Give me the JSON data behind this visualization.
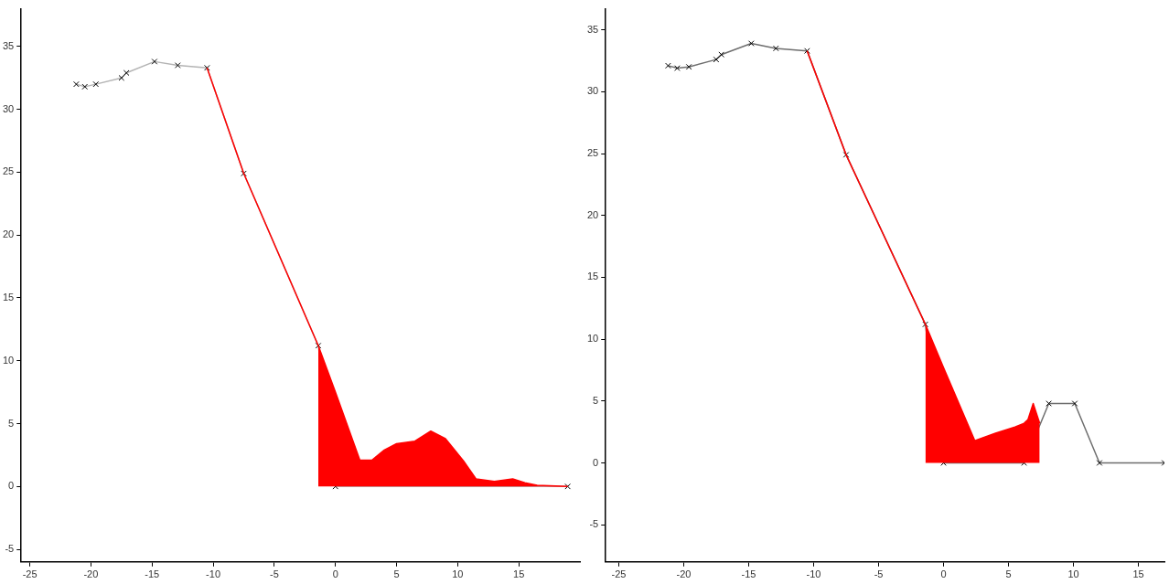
{
  "chart_data": [
    {
      "type": "line",
      "xlim": [
        -25.7,
        20
      ],
      "ylim": [
        -6,
        38
      ],
      "xticks": [
        -25,
        -20,
        -15,
        -10,
        -5,
        0,
        5,
        10,
        15
      ],
      "yticks": [
        -5,
        0,
        5,
        10,
        15,
        20,
        25,
        30,
        35
      ],
      "grid": false,
      "series": [
        {
          "type": "line",
          "color": "#b4b4b4",
          "marker": "cross",
          "x": [
            -21.2,
            -20.5,
            -19.6,
            -17.5,
            -17.1,
            -14.8,
            -12.9,
            -10.5,
            -7.5,
            -1.4,
            0,
            19
          ],
          "values": [
            32,
            31.8,
            32,
            32.5,
            32.9,
            33.8,
            33.5,
            33.3,
            24.9,
            11.2,
            0,
            0
          ]
        },
        {
          "type": "area",
          "color": "#ff0000",
          "marker": "none",
          "x": [
            -1.4,
            0,
            2,
            3,
            4,
            5,
            6.5,
            7.8,
            9,
            10.5,
            11.5,
            13,
            14.5,
            15.5,
            16.5,
            19
          ],
          "values": [
            11.2,
            7.5,
            2.1,
            2.1,
            2.9,
            3.4,
            3.6,
            4.4,
            3.8,
            2,
            0.6,
            0.4,
            0.6,
            0.3,
            0.1,
            0
          ]
        },
        {
          "type": "line",
          "color": "#ff0000",
          "marker": "none",
          "x": [
            -10.5,
            -7.5,
            -1.4
          ],
          "values": [
            33.3,
            24.9,
            11.2
          ]
        }
      ]
    },
    {
      "type": "line",
      "xlim": [
        -26,
        17
      ],
      "ylim": [
        -8,
        36.7
      ],
      "xticks": [
        -25,
        -20,
        -15,
        -10,
        -5,
        0,
        5,
        10,
        15
      ],
      "yticks": [
        -5,
        0,
        5,
        10,
        15,
        20,
        25,
        30,
        35
      ],
      "grid": false,
      "series": [
        {
          "type": "line",
          "color": "#6e6e6e",
          "marker": "cross",
          "x": [
            -21.2,
            -20.5,
            -19.6,
            -17.5,
            -17.1,
            -14.8,
            -12.9,
            -10.5,
            -7.5,
            -1.4,
            0,
            6.2,
            8.1,
            10.1,
            12,
            17
          ],
          "values": [
            32.1,
            31.9,
            32,
            32.6,
            33,
            33.9,
            33.5,
            33.3,
            24.9,
            11.2,
            0,
            0,
            4.8,
            4.8,
            0,
            0
          ]
        },
        {
          "type": "area",
          "color": "#ff0000",
          "marker": "none",
          "x": [
            -1.4,
            0,
            2.4,
            4,
            5.5,
            6.2,
            6.5,
            6.9,
            7.4
          ],
          "values": [
            11.2,
            7.7,
            1.8,
            2.4,
            2.9,
            3.2,
            3.5,
            4.8,
            3.2
          ]
        },
        {
          "type": "line",
          "color": "#ff0000",
          "marker": "none",
          "x": [
            -10.5,
            -7.5,
            -1.4
          ],
          "values": [
            33.3,
            24.9,
            11.2
          ]
        }
      ]
    }
  ]
}
